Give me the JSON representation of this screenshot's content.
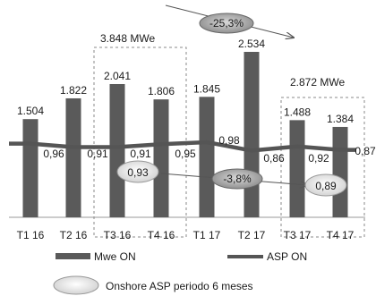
{
  "chart_data": {
    "type": "bar",
    "categories": [
      "T1 16",
      "T2 16",
      "T3 16",
      "T4 16",
      "T1 17",
      "T2 17",
      "T3 17",
      "T4 17"
    ],
    "series": [
      {
        "name": "Mwe ON",
        "values": [
          1504,
          1822,
          2041,
          1806,
          1845,
          2534,
          1488,
          1384
        ],
        "labels": [
          "1.504",
          "1.822",
          "2.041",
          "1.806",
          "1.845",
          "2.534",
          "1.488",
          "1.384"
        ],
        "color": "#5a5a5a"
      },
      {
        "name": "ASP ON",
        "type": "line",
        "values": [
          0.96,
          0.91,
          0.91,
          0.95,
          0.98,
          0.86,
          0.92,
          0.87
        ],
        "labels": [
          "0,96",
          "0,91",
          "0,91",
          "0,95",
          "0,98",
          "0,86",
          "0,92",
          "0,87"
        ],
        "color": "#555555"
      }
    ],
    "ylim": [
      0,
      2800
    ],
    "legend_position": "bottom",
    "annotations": {
      "top_change": "-25,3%",
      "mid_change": "-3,8%",
      "group_2016": "3.848 MWe",
      "group_2017": "2.872 MWe",
      "asp_6m_2016": "0,93",
      "asp_6m_2017": "0,89",
      "asp_6m_legend": "Onshore ASP periodo 6 meses"
    }
  }
}
